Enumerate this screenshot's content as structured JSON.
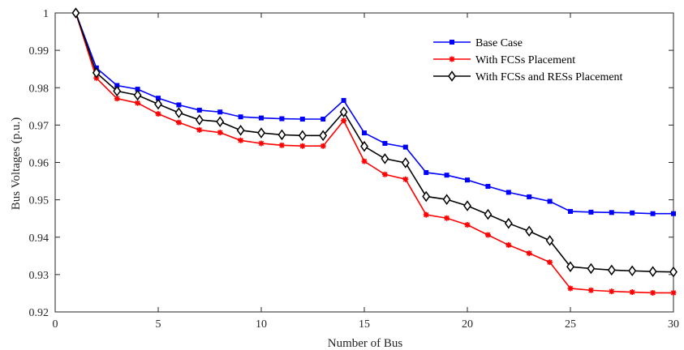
{
  "chart_data": {
    "type": "line",
    "title": "",
    "xlabel": "Number of Bus",
    "ylabel": "Bus Voltages (p.u.)",
    "xlim": [
      0,
      30
    ],
    "ylim": [
      0.92,
      1
    ],
    "xticks": [
      0,
      5,
      10,
      15,
      20,
      25,
      30
    ],
    "yticks": [
      0.92,
      0.93,
      0.94,
      0.95,
      0.96,
      0.97,
      0.98,
      0.99,
      1
    ],
    "ytick_labels": [
      "0.92",
      "0.93",
      "0.94",
      "0.95",
      "0.96",
      "0.97",
      "0.98",
      "0.99",
      "1"
    ],
    "grid": false,
    "legend_position": "top-right",
    "x": [
      1,
      2,
      3,
      4,
      5,
      6,
      7,
      8,
      9,
      10,
      11,
      12,
      13,
      14,
      15,
      16,
      17,
      18,
      19,
      20,
      21,
      22,
      23,
      24,
      25,
      26,
      27,
      28,
      29,
      30
    ],
    "series": [
      {
        "name": "Base Case",
        "color": "#0000ff",
        "marker": "square",
        "values": [
          1.0,
          0.9853,
          0.9806,
          0.9796,
          0.9772,
          0.9754,
          0.974,
          0.9735,
          0.9722,
          0.9719,
          0.9717,
          0.9716,
          0.9716,
          0.9766,
          0.9679,
          0.9651,
          0.9641,
          0.9573,
          0.9566,
          0.9553,
          0.9536,
          0.952,
          0.9508,
          0.9496,
          0.9469,
          0.9467,
          0.9466,
          0.9465,
          0.9463,
          0.9463
        ]
      },
      {
        "name": "With FCSs Placement",
        "color": "#ff0000",
        "marker": "star",
        "values": [
          1.0,
          0.9826,
          0.9771,
          0.9759,
          0.973,
          0.9707,
          0.9687,
          0.968,
          0.9659,
          0.9651,
          0.9646,
          0.9644,
          0.9644,
          0.9712,
          0.9603,
          0.9568,
          0.9555,
          0.946,
          0.9451,
          0.9433,
          0.9406,
          0.9379,
          0.9357,
          0.9333,
          0.9263,
          0.9258,
          0.9255,
          0.9253,
          0.9251,
          0.9251
        ]
      },
      {
        "name": "With FCSs and RESs Placement",
        "color": "#000000",
        "marker": "diamond",
        "values": [
          1.0,
          0.984,
          0.9791,
          0.978,
          0.9756,
          0.9733,
          0.9714,
          0.9709,
          0.9686,
          0.9679,
          0.9674,
          0.9672,
          0.9672,
          0.9735,
          0.9643,
          0.961,
          0.9599,
          0.9509,
          0.9501,
          0.9484,
          0.9461,
          0.9437,
          0.9416,
          0.9391,
          0.9321,
          0.9316,
          0.9312,
          0.931,
          0.9308,
          0.9307
        ]
      }
    ]
  }
}
